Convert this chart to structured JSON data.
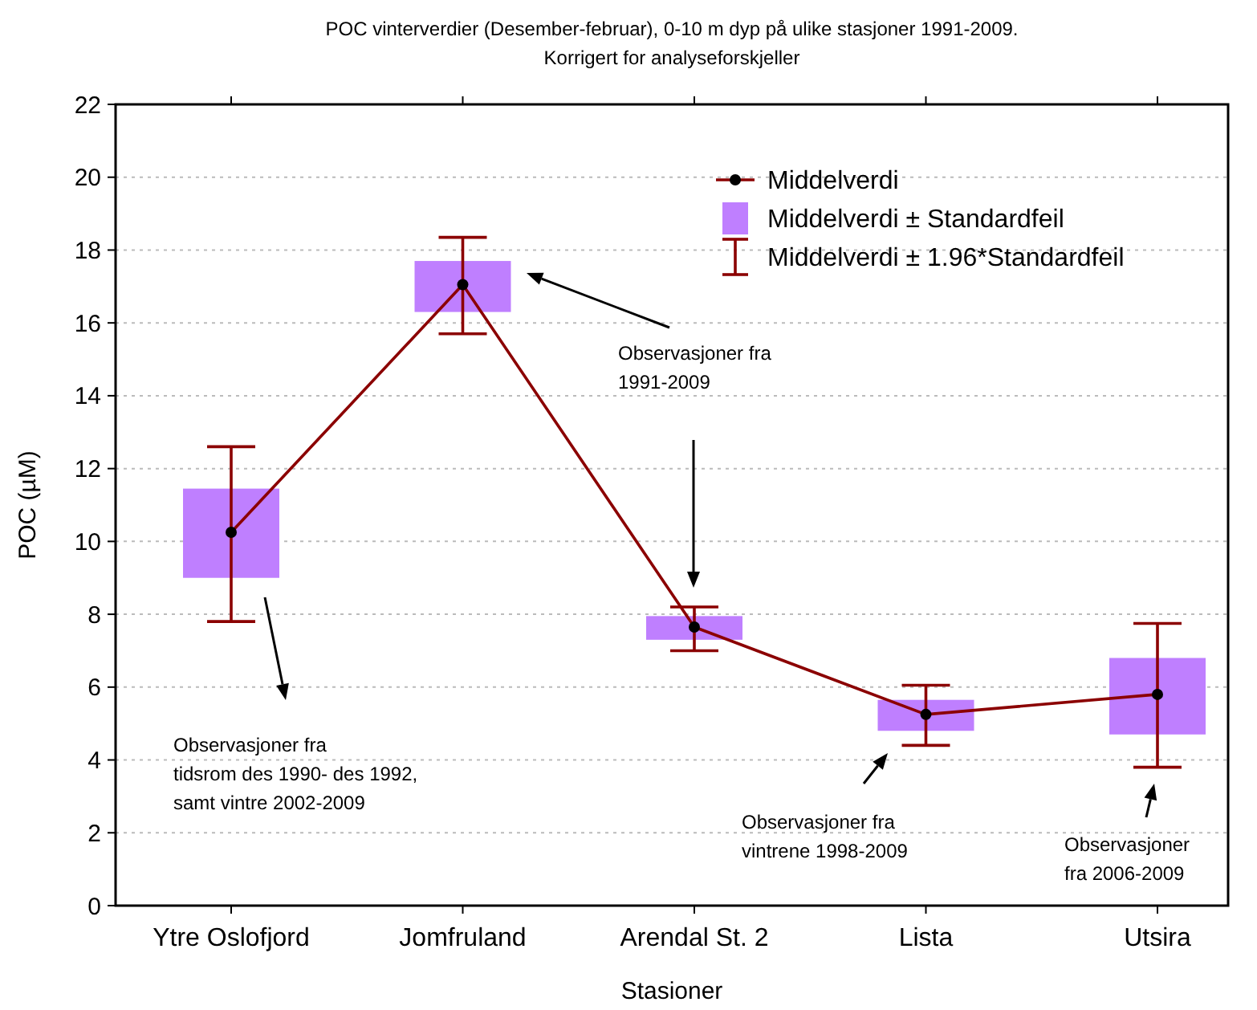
{
  "chart_data": {
    "type": "line",
    "title": "POC vinterverdier (Desember-februar), 0-10 m dyp på ulike stasjoner 1991-2009.",
    "subtitle": "Korrigert for analyseforskjeller",
    "xlabel": "Stasioner",
    "ylabel": "POC (µM)",
    "categories": [
      "Ytre Oslofjord",
      "Jomfruland",
      "Arendal St. 2",
      "Lista",
      "Utsira"
    ],
    "ylim": [
      0,
      22
    ],
    "yticks": [
      0,
      2,
      4,
      6,
      8,
      10,
      12,
      14,
      16,
      18,
      20,
      22
    ],
    "grid": "y",
    "legend": "top right",
    "series": [
      {
        "type": "bar",
        "name": "Middelverdi ± Standardfeil",
        "color": "#bf7fff",
        "base": [
          9.0,
          16.3,
          7.3,
          4.8,
          4.7
        ],
        "values": [
          2.45,
          1.4,
          0.65,
          0.85,
          2.1
        ]
      },
      {
        "name": "Middelverdi",
        "color": "#8b0000",
        "marker": "circle",
        "values": [
          10.25,
          17.05,
          7.65,
          5.25,
          5.8
        ],
        "errors": [
          [
            7.8,
            12.6
          ],
          [
            15.7,
            18.35
          ],
          [
            7.0,
            8.2
          ],
          [
            4.4,
            6.05
          ],
          [
            3.8,
            7.75
          ]
        ]
      }
    ],
    "annotations": [
      "Observasjoner fra\ntidsrom des 1990- des 1992,\nsamt vintre 2002-2009",
      "Observasjoner fra\n1991-2009",
      "Observasjoner fra\nvintrene 1998-2009",
      "Observasjoner\nfra 2006-2009",
      "Middelverdi ± 1.96*Standardfeil"
    ]
  }
}
